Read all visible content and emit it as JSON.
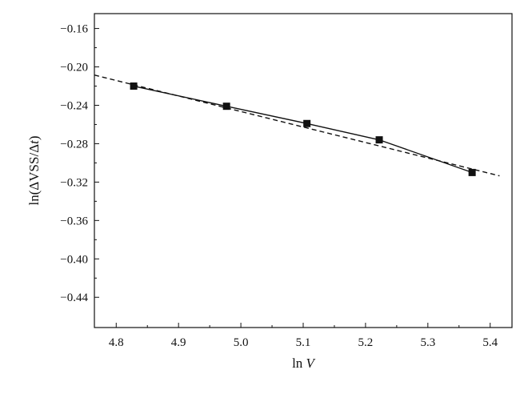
{
  "chart_data": {
    "type": "scatter",
    "xlabel": {
      "pre": "ln ",
      "italic": "V",
      "post": ""
    },
    "ylabel": {
      "pre": "ln(ΔVSS/Δ",
      "italic": "t",
      "post": ")"
    },
    "xlim": [
      4.765,
      5.435
    ],
    "ylim": [
      -0.4715,
      -0.1445
    ],
    "xticks": [
      4.8,
      4.9,
      5.0,
      5.1,
      5.2,
      5.3,
      5.4
    ],
    "xtick_labels": [
      "4.8",
      "4.9",
      "5.0",
      "5.1",
      "5.2",
      "5.3",
      "5.4"
    ],
    "yticks": [
      -0.16,
      -0.2,
      -0.24,
      -0.28,
      -0.32,
      -0.36,
      -0.4,
      -0.44
    ],
    "ytick_labels": [
      "−0.16",
      "−0.20",
      "−0.24",
      "−0.28",
      "−0.32",
      "−0.36",
      "−0.40",
      "−0.44"
    ],
    "grid": false,
    "series": [
      {
        "style": "solid line with square markers",
        "color": "#111111",
        "x": [
          4.828,
          4.977,
          5.106,
          5.222,
          5.371
        ],
        "y": [
          -0.22,
          -0.241,
          -0.259,
          -0.276,
          -0.31
        ]
      },
      {
        "style": "dashed linear fit",
        "color": "#111111",
        "x": [
          4.765,
          5.415
        ],
        "y": [
          -0.2085,
          -0.3135
        ]
      }
    ]
  }
}
